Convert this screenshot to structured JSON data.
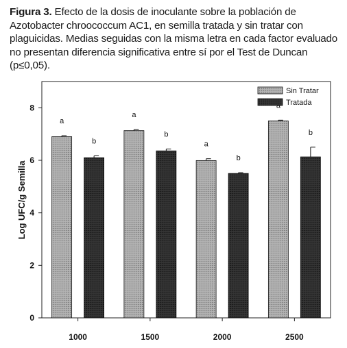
{
  "caption": {
    "label": "Figura 3.",
    "text": "Efecto de la dosis de inoculante sobre la población de Azotobacter chroococcum AC1, en semilla tratada y sin tratar con plaguicidas. Medias seguidas con la misma letra en cada factor evaluado no presentan diferencia significativa entre sí por el Test de Duncan (p≤0,05)."
  },
  "chart_data": {
    "type": "bar",
    "categories": [
      "1000",
      "1500",
      "2000",
      "2500"
    ],
    "series": [
      {
        "name": "Sin Tratar",
        "color": "#8f8f8f",
        "values": [
          6.9,
          7.13,
          5.99,
          7.5
        ],
        "errors": [
          0.04,
          0.04,
          0.07,
          0.03
        ],
        "letters": [
          "a",
          "a",
          "a",
          "a"
        ]
      },
      {
        "name": "Tratada",
        "color": "#2b2b2b",
        "values": [
          6.1,
          6.36,
          5.5,
          6.13
        ],
        "errors": [
          0.07,
          0.07,
          0.03,
          0.37
        ],
        "letters": [
          "b",
          "b",
          "b",
          "b"
        ]
      }
    ],
    "xlabel": "",
    "ylabel": "Log UFC/g Semilla",
    "ylim": [
      0,
      9
    ],
    "yticks": [
      0,
      2,
      4,
      6,
      8
    ],
    "legend_position": "top-right",
    "grid": false
  }
}
